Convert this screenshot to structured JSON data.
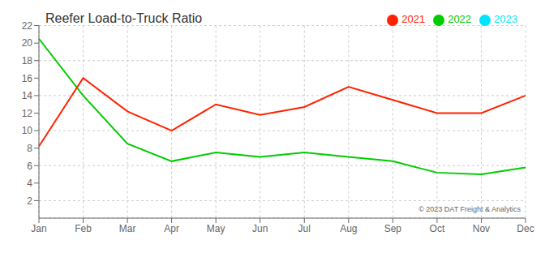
{
  "chart_data": {
    "type": "line",
    "title": "Reefer Load-to-Truck Ratio",
    "categories": [
      "Jan",
      "Feb",
      "Mar",
      "Apr",
      "May",
      "Jun",
      "Jul",
      "Aug",
      "Sep",
      "Oct",
      "Nov",
      "Dec"
    ],
    "series": [
      {
        "name": "2023",
        "color": "#00e5ff",
        "values": [
          null,
          null,
          null,
          null,
          null,
          null,
          null,
          null,
          null,
          null,
          null,
          null
        ]
      },
      {
        "name": "2022",
        "color": "#00cc00",
        "values": [
          20.5,
          14.0,
          8.5,
          6.5,
          7.5,
          7.0,
          7.5,
          7.0,
          6.5,
          5.2,
          5.0,
          5.8
        ]
      },
      {
        "name": "2021",
        "color": "#ff2200",
        "values": [
          8.2,
          16.0,
          12.2,
          10.0,
          13.0,
          11.8,
          12.7,
          15.0,
          13.5,
          12.0,
          12.0,
          14.0
        ]
      }
    ],
    "ylim": [
      0,
      22
    ],
    "yticks": [
      2,
      4,
      6,
      8,
      10,
      12,
      14,
      16,
      18,
      20,
      22
    ],
    "grid": true,
    "legend": "upper right",
    "annotations": [
      "© 2023 DAT Freight & Analytics"
    ]
  }
}
